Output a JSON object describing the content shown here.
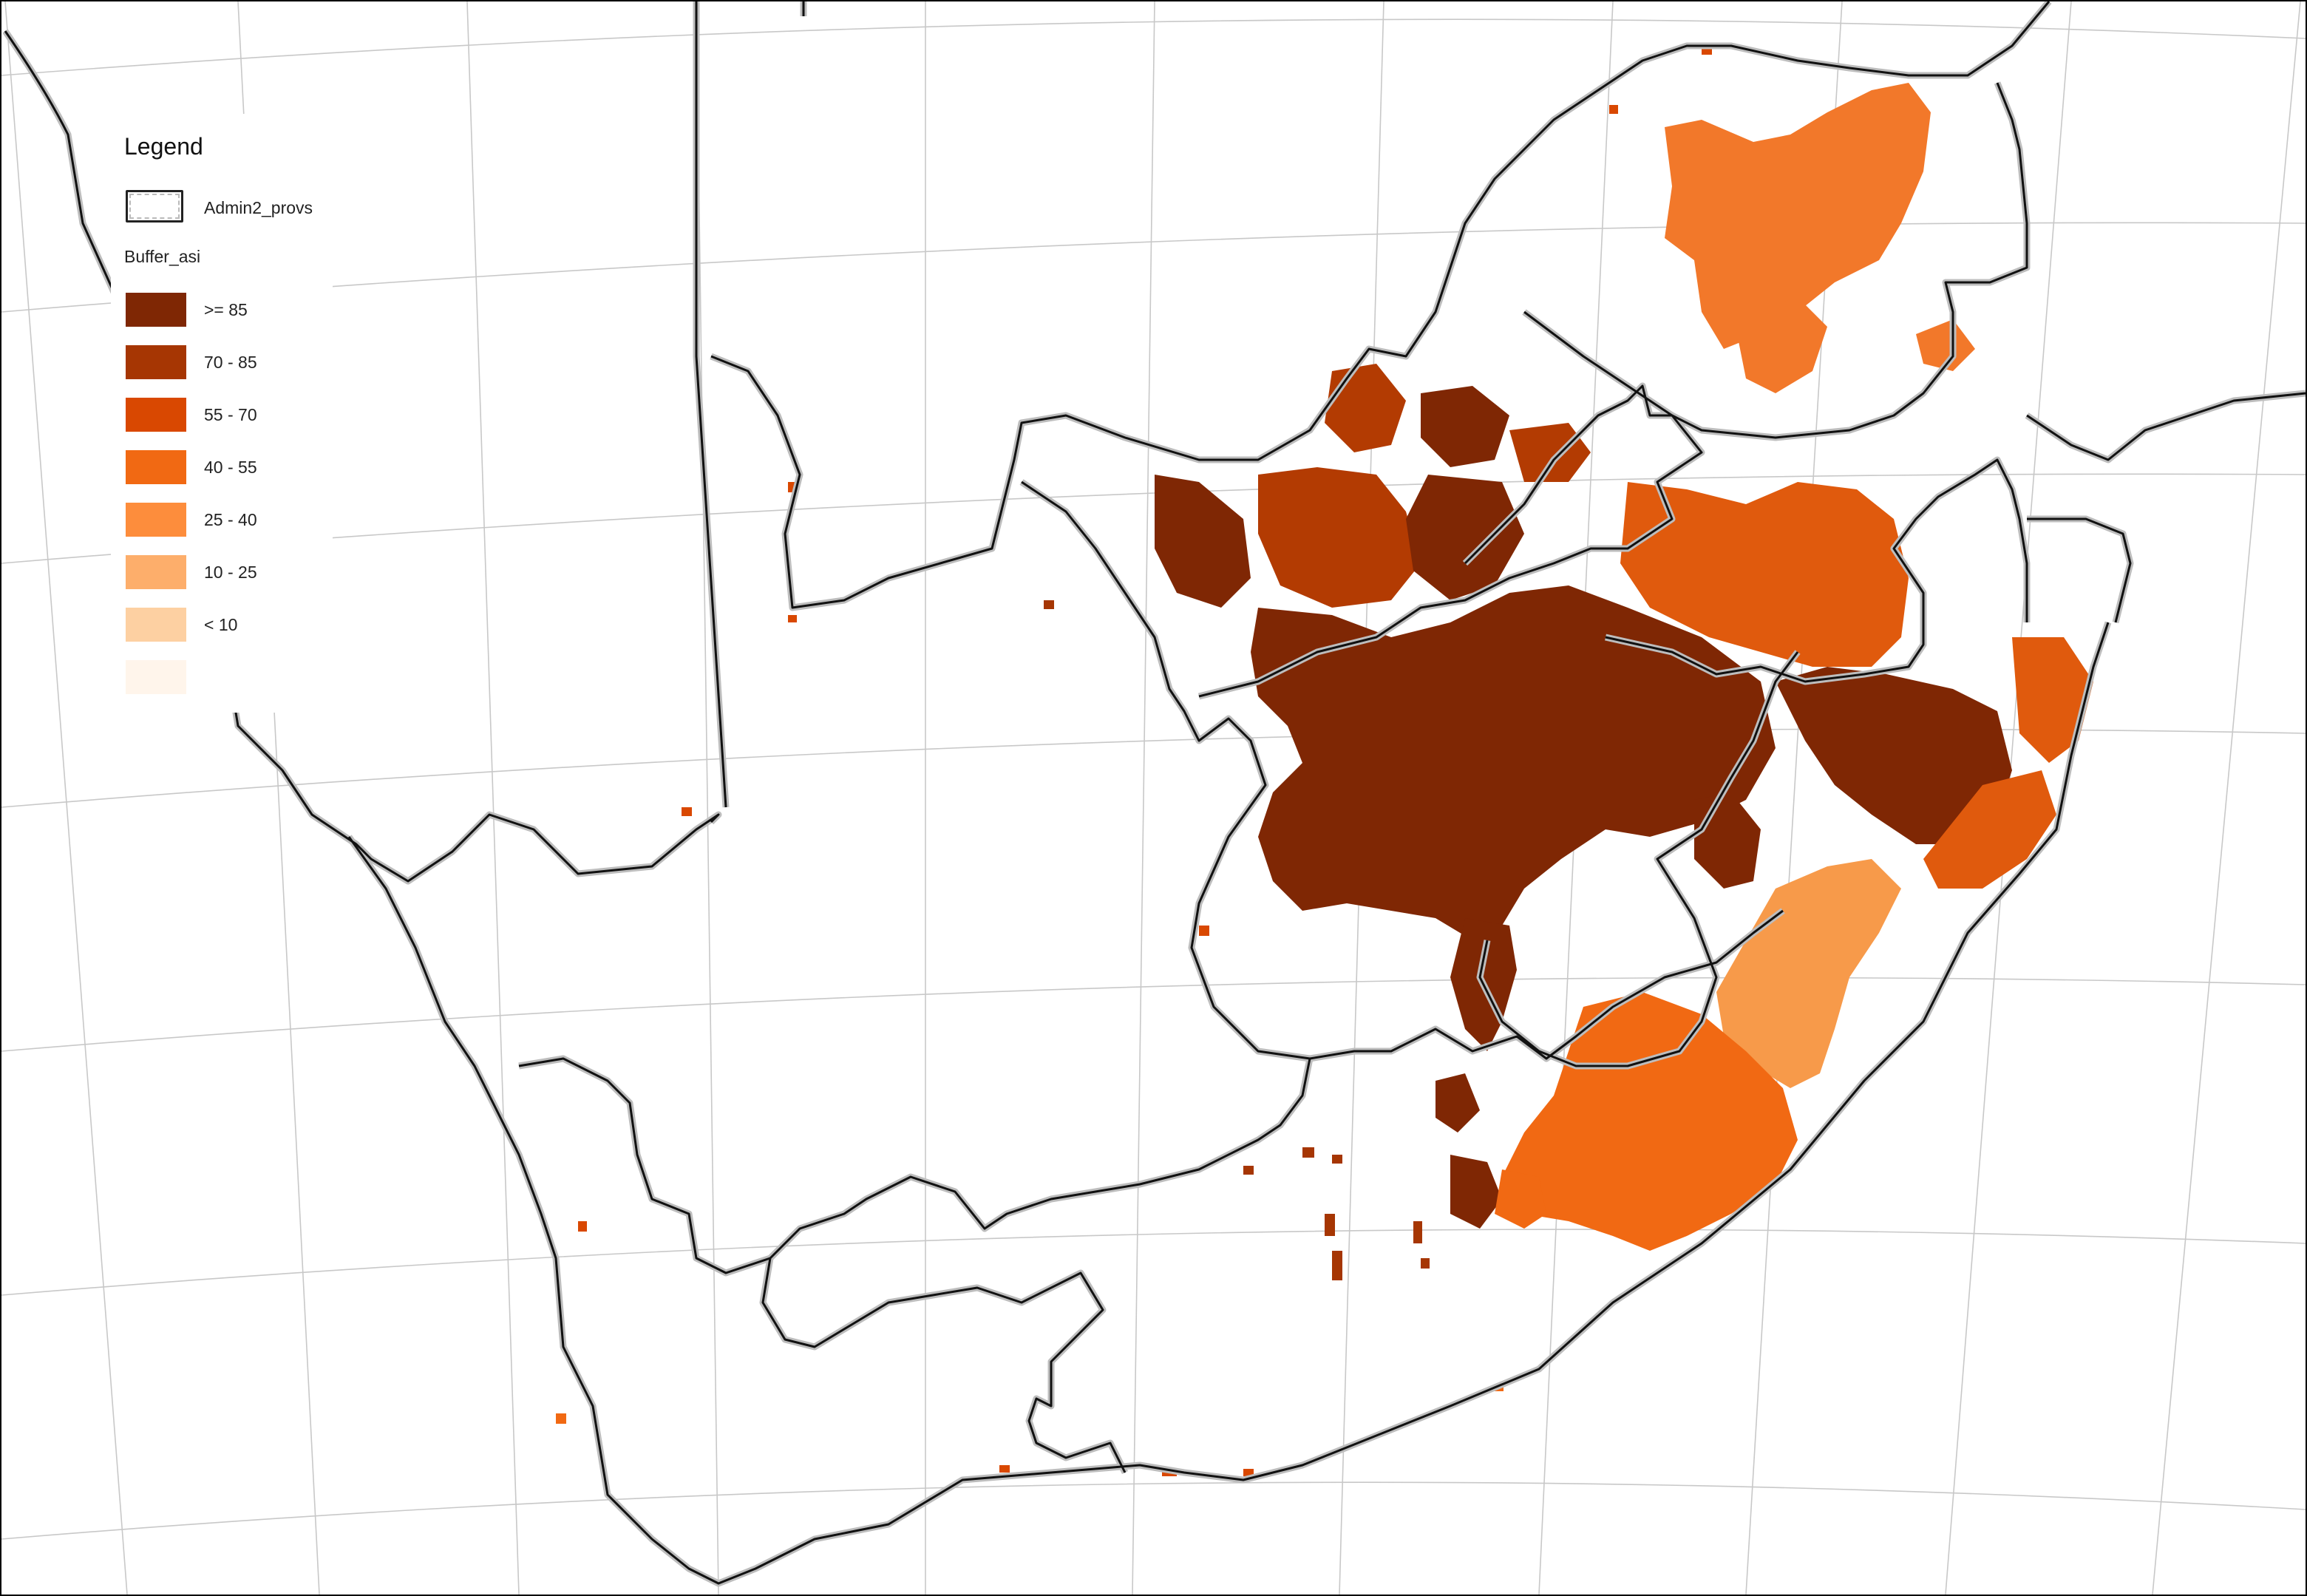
{
  "legend": {
    "title": "Legend",
    "admin_label": "Admin2_provs",
    "buffer_title": "Buffer_asi",
    "classes": [
      {
        "label": ">= 85",
        "color": "#7f2704"
      },
      {
        "label": "70 - 85",
        "color": "#a63603"
      },
      {
        "label": "55 - 70",
        "color": "#d94801"
      },
      {
        "label": "40 - 55",
        "color": "#f16913"
      },
      {
        "label": "25 - 40",
        "color": "#fd8d3c"
      },
      {
        "label": "10 - 25",
        "color": "#fdae6b"
      },
      {
        "label": "< 10",
        "color": "#fdd0a2"
      },
      {
        "label": "",
        "color": "#fff5eb"
      }
    ]
  },
  "map": {
    "boundary_color": "#111111",
    "boundary_halo_color": "#bdbdbd",
    "graticule_color": "#c8c8c8"
  }
}
